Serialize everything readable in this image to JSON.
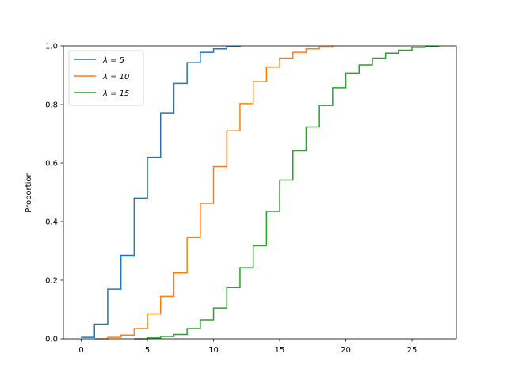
{
  "chart_data": {
    "type": "line",
    "drawstyle": "steps-post",
    "title": "",
    "xlabel": "",
    "ylabel": "Proportion",
    "xlim": [
      -1.35,
      28.35
    ],
    "ylim": [
      0,
      1
    ],
    "xticks": [
      0,
      5,
      10,
      15,
      20,
      25
    ],
    "yticks": [
      0.0,
      0.2,
      0.4,
      0.6,
      0.8,
      1.0
    ],
    "xtick_labels": [
      "0",
      "5",
      "10",
      "15",
      "20",
      "25"
    ],
    "ytick_labels": [
      "0.0",
      "0.2",
      "0.4",
      "0.6",
      "0.8",
      "1.0"
    ],
    "grid": false,
    "legend_position": "top-left",
    "series": [
      {
        "name": "λ = 5",
        "color": "#1f77b4",
        "x": [
          0,
          1,
          2,
          3,
          4,
          5,
          6,
          7,
          8,
          9,
          10,
          11,
          12
        ],
        "y": [
          0.005,
          0.05,
          0.17,
          0.285,
          0.48,
          0.62,
          0.77,
          0.872,
          0.943,
          0.978,
          0.99,
          0.997,
          1.0
        ]
      },
      {
        "name": "λ = 10",
        "color": "#ff7f0e",
        "x": [
          1,
          2,
          3,
          4,
          5,
          6,
          7,
          8,
          9,
          10,
          11,
          12,
          13,
          14,
          15,
          16,
          17,
          18,
          19
        ],
        "y": [
          0.0,
          0.005,
          0.013,
          0.035,
          0.085,
          0.145,
          0.225,
          0.347,
          0.462,
          0.588,
          0.71,
          0.803,
          0.878,
          0.928,
          0.958,
          0.978,
          0.99,
          0.996,
          1.0
        ]
      },
      {
        "name": "λ = 15",
        "color": "#2ca02c",
        "x": [
          4,
          5,
          6,
          7,
          8,
          9,
          10,
          11,
          12,
          13,
          14,
          15,
          16,
          17,
          18,
          19,
          20,
          21,
          22,
          23,
          24,
          25,
          26,
          27
        ],
        "y": [
          0.0,
          0.003,
          0.008,
          0.015,
          0.035,
          0.065,
          0.105,
          0.175,
          0.243,
          0.318,
          0.435,
          0.542,
          0.642,
          0.723,
          0.797,
          0.857,
          0.907,
          0.935,
          0.958,
          0.975,
          0.985,
          0.995,
          0.998,
          1.0
        ]
      }
    ]
  }
}
